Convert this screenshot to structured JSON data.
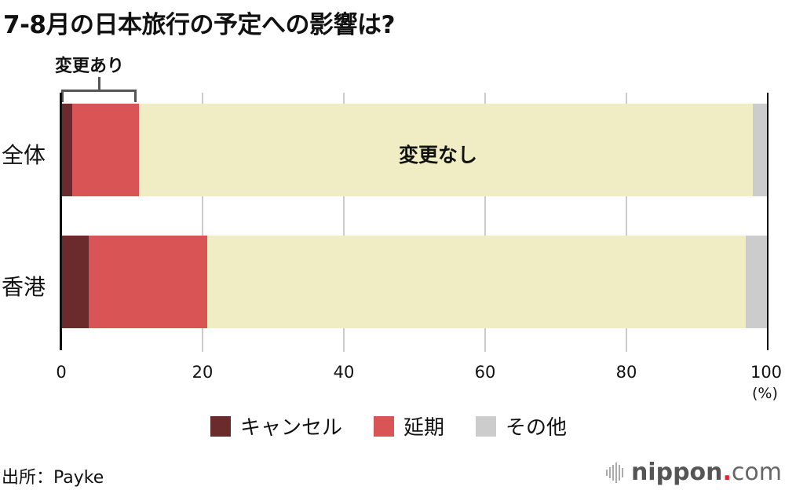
{
  "title": "7-8月の日本旅行の予定への影響は?",
  "bracket_label": "変更あり",
  "inbar_label": "変更なし",
  "unit_label": "(%)",
  "source": "出所：Payke",
  "logo": {
    "main": "nippon",
    "dot": ".",
    "suffix": "com"
  },
  "colors": {
    "cancel": "#6b2a2c",
    "delay": "#d95555",
    "nochange": "#f0edc5",
    "other": "#cccccc"
  },
  "legend": [
    {
      "label": "キャンセル",
      "color": "#6b2a2c"
    },
    {
      "label": "延期",
      "color": "#d95555"
    },
    {
      "label": "その他",
      "color": "#cccccc"
    }
  ],
  "chart_data": {
    "type": "bar",
    "orientation": "horizontal",
    "stacked": true,
    "title": "7-8月の日本旅行の予定への影響は?",
    "categories": [
      "全体",
      "香港"
    ],
    "series": [
      {
        "name": "キャンセル",
        "values": [
          1.5,
          3.9
        ]
      },
      {
        "name": "延期",
        "values": [
          9.5,
          16.8
        ]
      },
      {
        "name": "変更なし",
        "values": [
          86.9,
          76.2
        ]
      },
      {
        "name": "その他",
        "values": [
          2.1,
          3.1
        ]
      }
    ],
    "xlabel": "(%)",
    "ylabel": "",
    "xlim": [
      0,
      100
    ],
    "xticks": [
      "0",
      "20",
      "40",
      "60",
      "80",
      "100"
    ],
    "grid": true,
    "legend_position": "bottom",
    "annotations": [
      "変更あり (bracket over キャンセル+延期, 全体)",
      "変更なし (in-bar label, 全体)"
    ],
    "source": "出所：Payke"
  }
}
